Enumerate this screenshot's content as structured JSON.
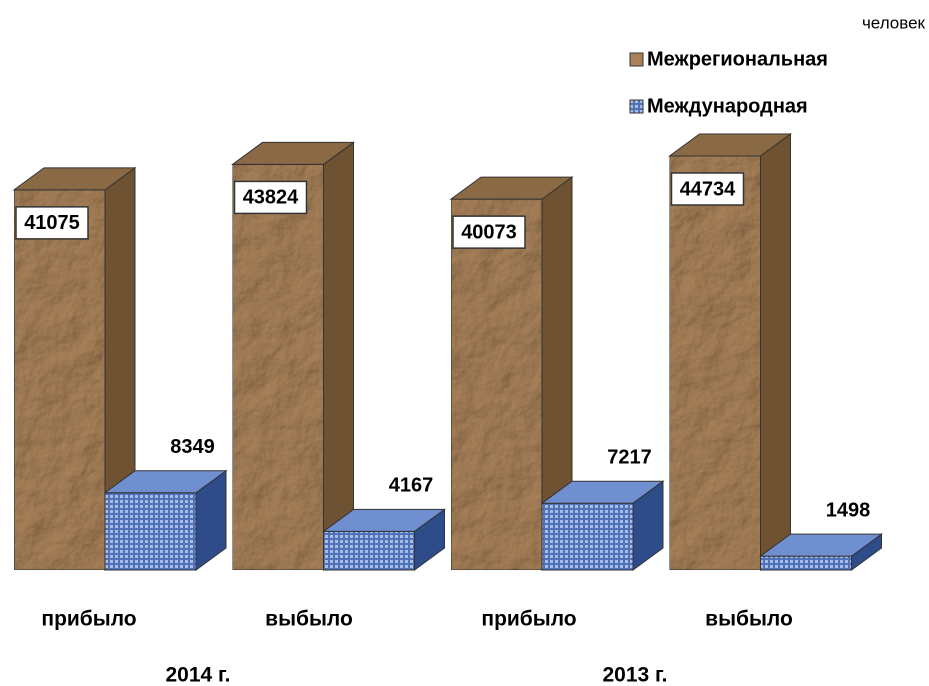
{
  "chart_data": {
    "type": "bar3d",
    "unit_label": "человек",
    "categories": [
      "прибыло",
      "выбыло",
      "прибыло",
      "выбыло"
    ],
    "groups": [
      "2014 г.",
      "2013 г."
    ],
    "series": [
      {
        "name": "Межрегиональная",
        "color": "#a9825a",
        "values": [
          41075,
          43824,
          40073,
          44734
        ]
      },
      {
        "name": "Международная",
        "color": "#4f72b8",
        "values": [
          8349,
          4167,
          7217,
          1498
        ]
      }
    ]
  }
}
